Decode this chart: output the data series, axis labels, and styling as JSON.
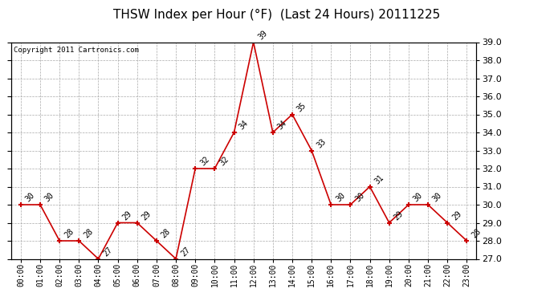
{
  "title": "THSW Index per Hour (°F)  (Last 24 Hours) 20111225",
  "copyright_text": "Copyright 2011 Cartronics.com",
  "hours": [
    "00:00",
    "01:00",
    "02:00",
    "03:00",
    "04:00",
    "05:00",
    "06:00",
    "07:00",
    "08:00",
    "09:00",
    "10:00",
    "11:00",
    "12:00",
    "13:00",
    "14:00",
    "15:00",
    "16:00",
    "17:00",
    "18:00",
    "19:00",
    "20:00",
    "21:00",
    "22:00",
    "23:00"
  ],
  "values": [
    30,
    30,
    28,
    28,
    27,
    29,
    29,
    28,
    27,
    32,
    32,
    34,
    39,
    34,
    35,
    33,
    30,
    30,
    31,
    29,
    30,
    30,
    29,
    28
  ],
  "ylim_min": 27.0,
  "ylim_max": 39.0,
  "yticks": [
    27.0,
    28.0,
    29.0,
    30.0,
    31.0,
    32.0,
    33.0,
    34.0,
    35.0,
    36.0,
    37.0,
    38.0,
    39.0
  ],
  "line_color": "#cc0000",
  "marker_color": "#cc0000",
  "bg_color": "#ffffff",
  "grid_color": "#aaaaaa",
  "title_fontsize": 11,
  "label_fontsize": 7,
  "annotation_fontsize": 7,
  "copyright_fontsize": 6.5
}
